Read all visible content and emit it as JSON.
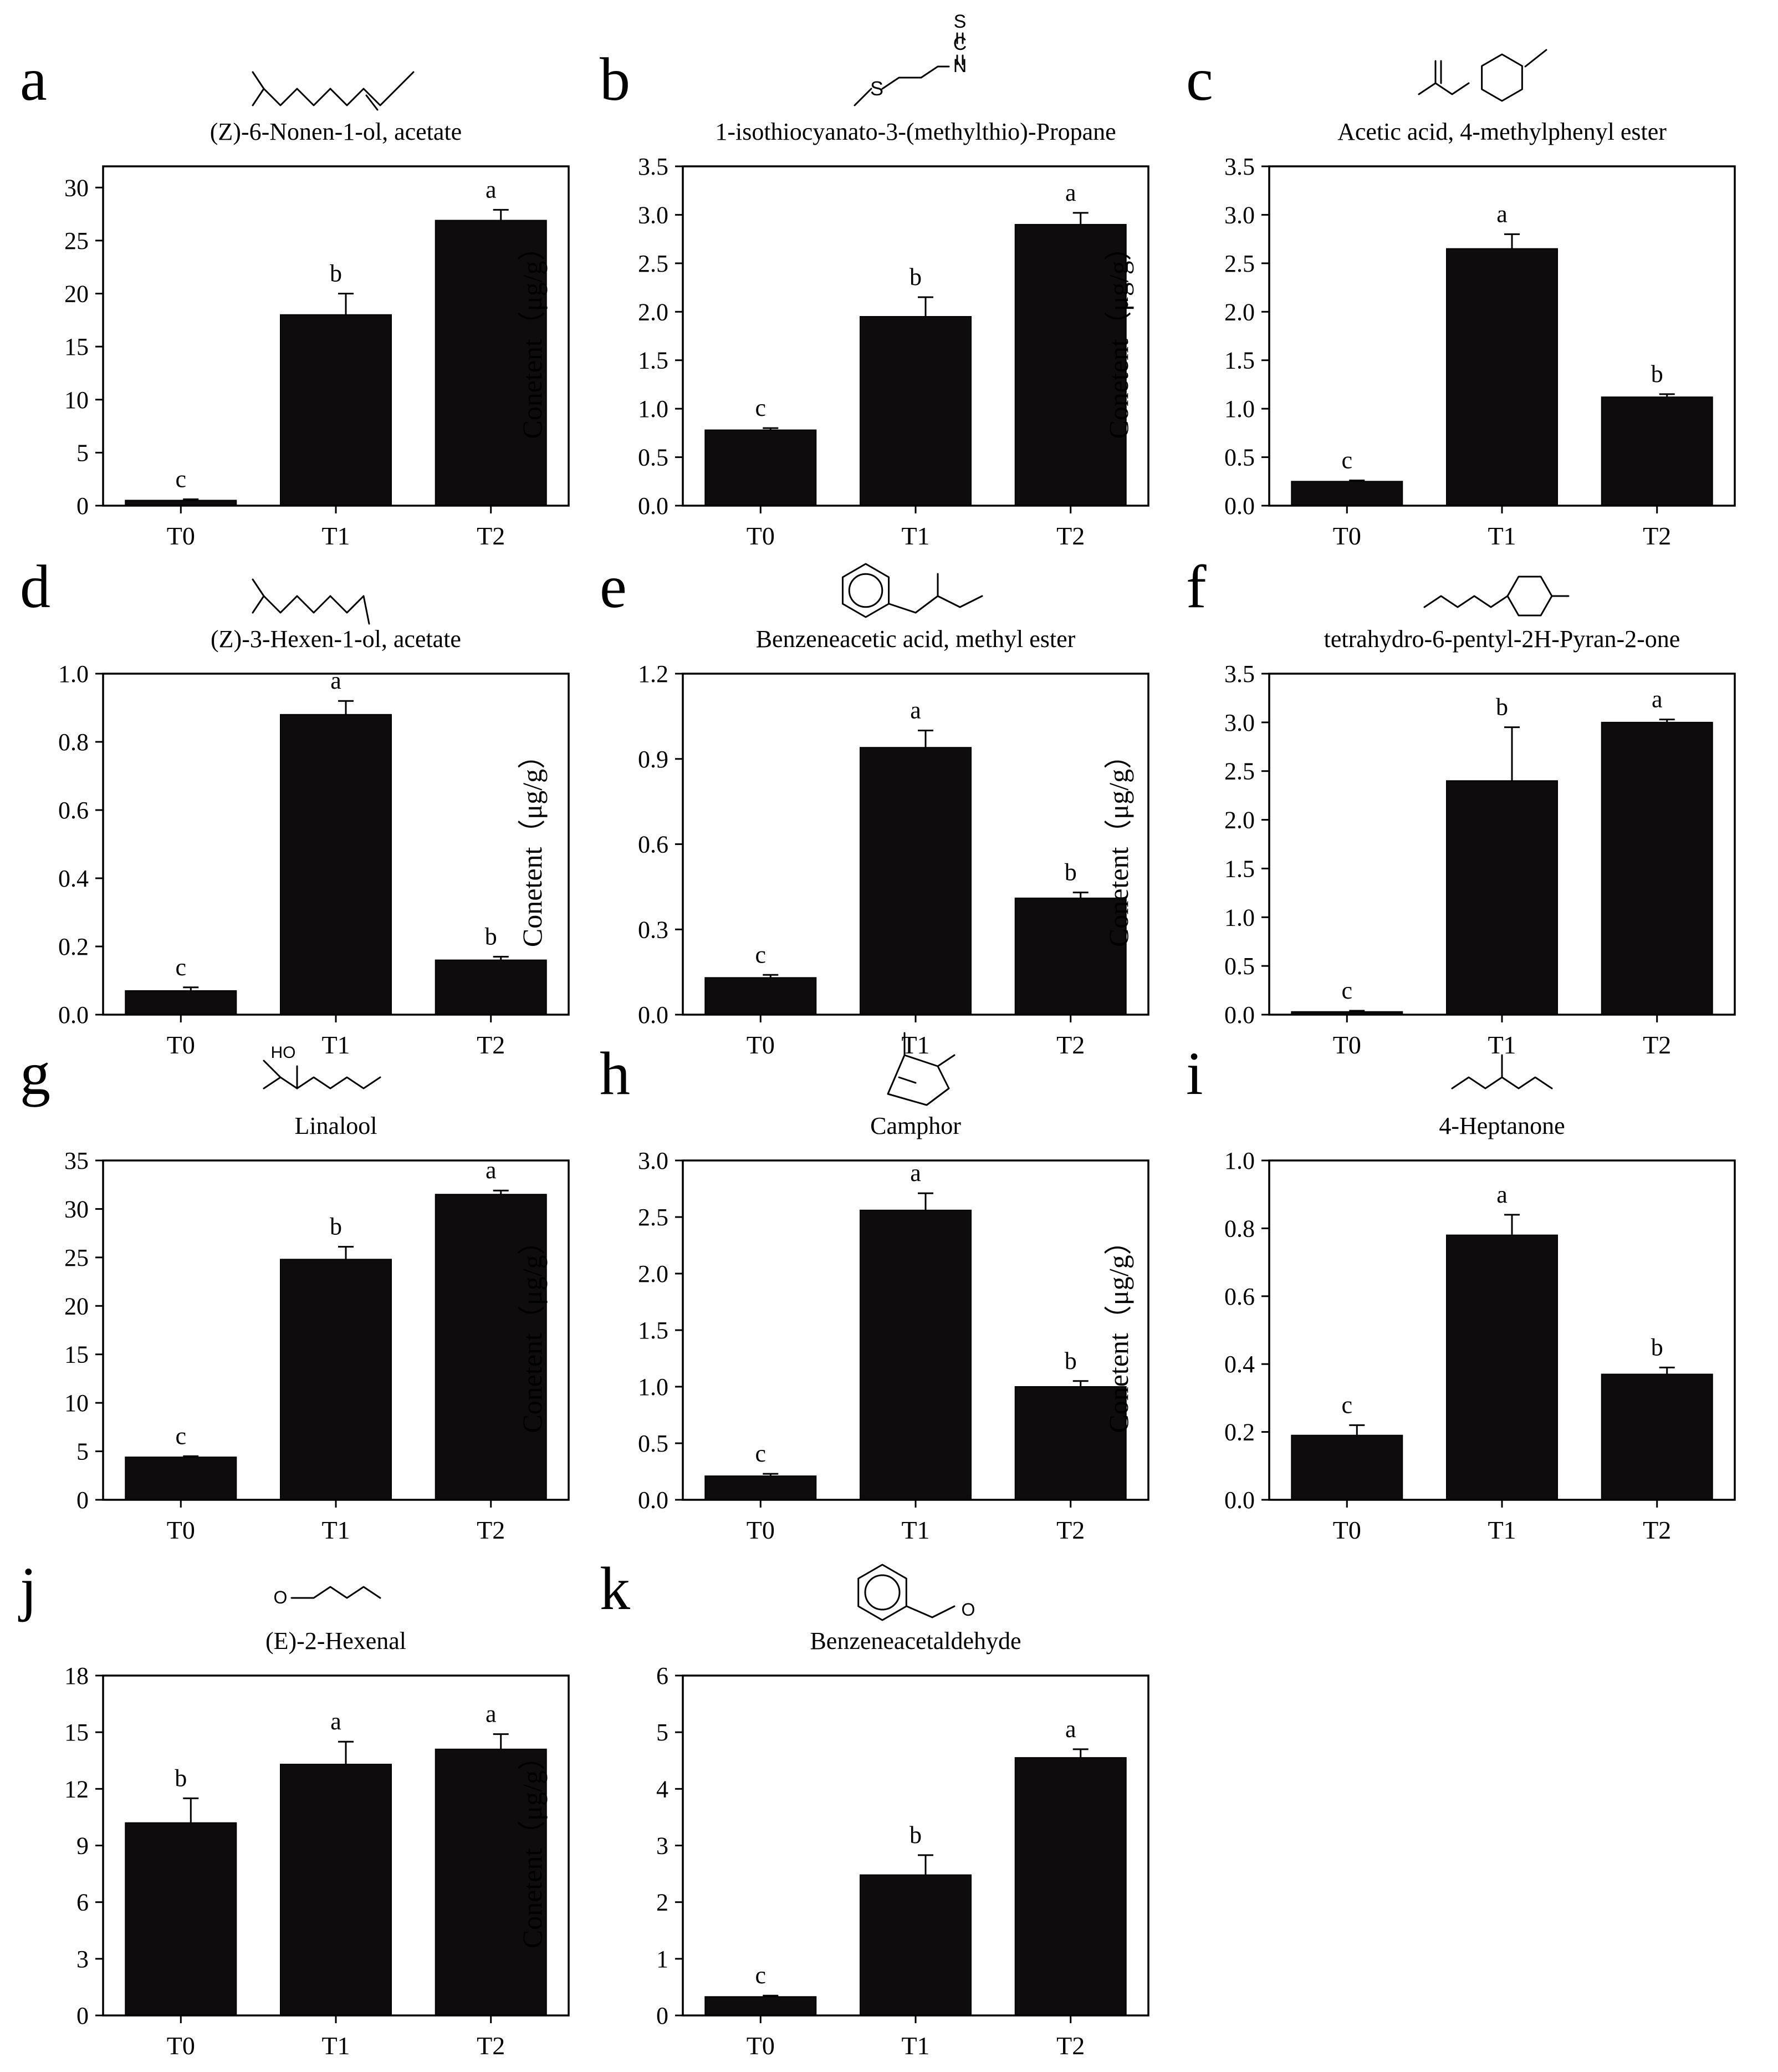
{
  "figure": {
    "y_axis_label": "Conetent（μg/g）"
  },
  "chart_data": [
    {
      "panel": "a",
      "type": "bar",
      "title": "(Z)-6-Nonen-1-ol, acetate",
      "categories": [
        "T0",
        "T1",
        "T2"
      ],
      "values": [
        0.5,
        18.0,
        26.9
      ],
      "errors": [
        0.1,
        2.0,
        1.0
      ],
      "letters": [
        "c",
        "b",
        "a"
      ],
      "ylim": [
        0,
        32
      ],
      "yticks": [
        0,
        5,
        10,
        15,
        20,
        25,
        30
      ],
      "ylabel": "Conetent（μg/g）",
      "structure": "nonenyl-acetate"
    },
    {
      "panel": "b",
      "type": "bar",
      "title": "1-isothiocyanato-3-(methylthio)-Propane",
      "categories": [
        "T0",
        "T1",
        "T2"
      ],
      "values": [
        0.78,
        1.95,
        2.9
      ],
      "errors": [
        0.02,
        0.2,
        0.12
      ],
      "letters": [
        "c",
        "b",
        "a"
      ],
      "ylim": [
        0,
        3.5
      ],
      "yticks": [
        0.0,
        0.5,
        1.0,
        1.5,
        2.0,
        2.5,
        3.0,
        3.5
      ],
      "ylabel": "Conetent（μg/g）",
      "structure": "isothiocyanate",
      "atom_labels": [
        "S",
        "C",
        "N",
        "S"
      ]
    },
    {
      "panel": "c",
      "type": "bar",
      "title": "Acetic acid, 4-methylphenyl ester",
      "categories": [
        "T0",
        "T1",
        "T2"
      ],
      "values": [
        0.25,
        2.65,
        1.12
      ],
      "errors": [
        0.01,
        0.15,
        0.03
      ],
      "letters": [
        "c",
        "a",
        "b"
      ],
      "ylim": [
        0,
        3.5
      ],
      "yticks": [
        0.0,
        0.5,
        1.0,
        1.5,
        2.0,
        2.5,
        3.0,
        3.5
      ],
      "ylabel": "Conetent（μg/g）",
      "structure": "tolyl-acetate"
    },
    {
      "panel": "d",
      "type": "bar",
      "title": "(Z)-3-Hexen-1-ol, acetate",
      "categories": [
        "T0",
        "T1",
        "T2"
      ],
      "values": [
        0.07,
        0.88,
        0.16
      ],
      "errors": [
        0.01,
        0.04,
        0.01
      ],
      "letters": [
        "c",
        "a",
        "b"
      ],
      "ylim": [
        0,
        1.0
      ],
      "yticks": [
        0.0,
        0.2,
        0.4,
        0.6,
        0.8,
        1.0
      ],
      "ylabel": "Conetent（μg/g）",
      "structure": "hexenyl-acetate"
    },
    {
      "panel": "e",
      "type": "bar",
      "title": "Benzeneacetic acid, methyl ester",
      "categories": [
        "T0",
        "T1",
        "T2"
      ],
      "values": [
        0.13,
        0.94,
        0.41
      ],
      "errors": [
        0.01,
        0.06,
        0.02
      ],
      "letters": [
        "c",
        "a",
        "b"
      ],
      "ylim": [
        0,
        1.2
      ],
      "yticks": [
        0.0,
        0.3,
        0.6,
        0.9,
        1.2
      ],
      "ylabel": "Conetent（μg/g）",
      "structure": "methyl-phenylacetate"
    },
    {
      "panel": "f",
      "type": "bar",
      "title": "tetrahydro-6-pentyl-2H-Pyran-2-one",
      "categories": [
        "T0",
        "T1",
        "T2"
      ],
      "values": [
        0.03,
        2.4,
        3.0
      ],
      "errors": [
        0.01,
        0.55,
        0.03
      ],
      "letters": [
        "c",
        "b",
        "a"
      ],
      "ylim": [
        0,
        3.5
      ],
      "yticks": [
        0.0,
        0.5,
        1.0,
        1.5,
        2.0,
        2.5,
        3.0,
        3.5
      ],
      "ylabel": "Conetent（μg/g）",
      "structure": "pentyl-lactone"
    },
    {
      "panel": "g",
      "type": "bar",
      "title": "Linalool",
      "categories": [
        "T0",
        "T1",
        "T2"
      ],
      "values": [
        4.4,
        24.8,
        31.5
      ],
      "errors": [
        0.1,
        1.3,
        0.4
      ],
      "letters": [
        "c",
        "b",
        "a"
      ],
      "ylim": [
        0,
        35
      ],
      "yticks": [
        0,
        5,
        10,
        15,
        20,
        25,
        30,
        35
      ],
      "ylabel": "Conetent（μg/g）",
      "structure": "linalool",
      "atom_labels": [
        "HO"
      ]
    },
    {
      "panel": "h",
      "type": "bar",
      "title": "Camphor",
      "categories": [
        "T0",
        "T1",
        "T2"
      ],
      "values": [
        0.21,
        2.56,
        1.0
      ],
      "errors": [
        0.02,
        0.15,
        0.05
      ],
      "letters": [
        "c",
        "a",
        "b"
      ],
      "ylim": [
        0,
        3.0
      ],
      "yticks": [
        0.0,
        0.5,
        1.0,
        1.5,
        2.0,
        2.5,
        3.0
      ],
      "ylabel": "Conetent（μg/g）",
      "structure": "camphor"
    },
    {
      "panel": "i",
      "type": "bar",
      "title": "4-Heptanone",
      "categories": [
        "T0",
        "T1",
        "T2"
      ],
      "values": [
        0.19,
        0.78,
        0.37
      ],
      "errors": [
        0.03,
        0.06,
        0.02
      ],
      "letters": [
        "c",
        "a",
        "b"
      ],
      "ylim": [
        0,
        1.0
      ],
      "yticks": [
        0.0,
        0.2,
        0.4,
        0.6,
        0.8,
        1.0
      ],
      "ylabel": "Conetent（μg/g）",
      "structure": "heptanone"
    },
    {
      "panel": "j",
      "type": "bar",
      "title": "(E)-2-Hexenal",
      "categories": [
        "T0",
        "T1",
        "T2"
      ],
      "values": [
        10.2,
        13.3,
        14.1
      ],
      "errors": [
        1.3,
        1.2,
        0.8
      ],
      "letters": [
        "b",
        "a",
        "a"
      ],
      "ylim": [
        0,
        18
      ],
      "yticks": [
        0,
        3,
        6,
        9,
        12,
        15,
        18
      ],
      "ylabel": "Conetent（μg/g）",
      "structure": "hexenal"
    },
    {
      "panel": "k",
      "type": "bar",
      "title": "Benzeneacetaldehyde",
      "categories": [
        "T0",
        "T1",
        "T2"
      ],
      "values": [
        0.33,
        2.48,
        4.55
      ],
      "errors": [
        0.02,
        0.35,
        0.15
      ],
      "letters": [
        "c",
        "b",
        "a"
      ],
      "ylim": [
        0,
        6
      ],
      "yticks": [
        0,
        1,
        2,
        3,
        4,
        5,
        6
      ],
      "ylabel": "Conetent（μg/g）",
      "structure": "phenylacetaldehyde"
    }
  ]
}
